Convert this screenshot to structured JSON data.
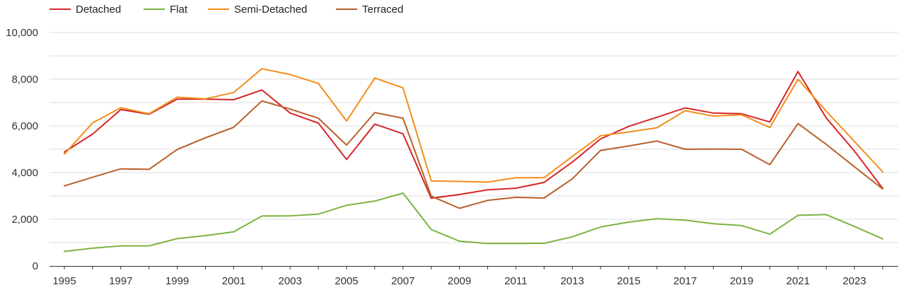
{
  "chart_data": {
    "type": "line",
    "title": "",
    "xlabel": "",
    "ylabel": "",
    "x": [
      1995,
      1996,
      1997,
      1998,
      1999,
      2000,
      2001,
      2002,
      2003,
      2004,
      2005,
      2006,
      2007,
      2008,
      2009,
      2010,
      2011,
      2012,
      2013,
      2014,
      2015,
      2016,
      2017,
      2018,
      2019,
      2020,
      2021,
      2022,
      2023,
      2024
    ],
    "xlim": [
      1995,
      2024.5
    ],
    "ylim": [
      0,
      10000
    ],
    "x_ticks": [
      1995,
      1997,
      1999,
      2001,
      2003,
      2005,
      2007,
      2009,
      2011,
      2013,
      2015,
      2017,
      2019,
      2021,
      2023
    ],
    "x_tick_labels": [
      "1995",
      "1997",
      "1999",
      "2001",
      "2003",
      "2005",
      "2007",
      "2009",
      "2011",
      "2013",
      "2015",
      "2017",
      "2019",
      "2021",
      "2023"
    ],
    "y_ticks": [
      0,
      2000,
      4000,
      6000,
      8000,
      10000
    ],
    "y_tick_labels": [
      "0",
      "2,000",
      "4,000",
      "6,000",
      "8,000",
      "10,000"
    ],
    "grid": true,
    "legend_position": "top-left",
    "series": [
      {
        "name": "Detached",
        "color": "#d62728",
        "values": [
          4880,
          5650,
          6700,
          6500,
          7150,
          7150,
          7120,
          7540,
          6550,
          6120,
          4560,
          6080,
          5660,
          2900,
          3060,
          3260,
          3330,
          3580,
          4450,
          5440,
          5980,
          6370,
          6770,
          6550,
          6520,
          6170,
          8330,
          6340,
          4920,
          3320
        ]
      },
      {
        "name": "Flat",
        "color": "#7cb342",
        "values": [
          620,
          760,
          860,
          860,
          1170,
          1300,
          1460,
          2140,
          2150,
          2220,
          2600,
          2780,
          3120,
          1560,
          1060,
          960,
          960,
          970,
          1250,
          1670,
          1880,
          2020,
          1960,
          1810,
          1730,
          1360,
          2170,
          2200,
          1690,
          1160
        ]
      },
      {
        "name": "Semi-Detached",
        "color": "#f28e1c",
        "values": [
          4790,
          6130,
          6780,
          6520,
          7230,
          7160,
          7430,
          8450,
          8200,
          7820,
          6210,
          8050,
          7630,
          3640,
          3620,
          3590,
          3780,
          3780,
          4690,
          5580,
          5740,
          5920,
          6650,
          6420,
          6480,
          5930,
          8000,
          6630,
          5330,
          4030
        ]
      },
      {
        "name": "Terraced",
        "color": "#b8602a",
        "values": [
          3430,
          3800,
          4160,
          4140,
          4990,
          5490,
          5940,
          7070,
          6720,
          6330,
          5180,
          6570,
          6330,
          2990,
          2470,
          2810,
          2940,
          2910,
          3730,
          4950,
          5140,
          5350,
          5000,
          5010,
          5000,
          4340,
          6100,
          5210,
          4250,
          3300
        ]
      }
    ]
  }
}
